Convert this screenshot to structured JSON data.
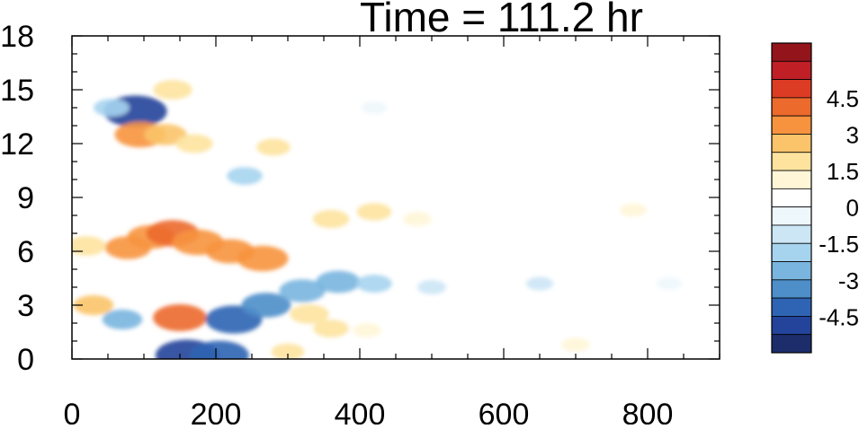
{
  "chart_data": {
    "type": "heatmap",
    "title": "Time = 111.2 hr",
    "xlabel": "",
    "ylabel": "",
    "xlim": [
      0,
      900
    ],
    "ylim": [
      0,
      18
    ],
    "x_ticks": [
      "0",
      "200",
      "400",
      "600",
      "800"
    ],
    "y_ticks": [
      "0",
      "3",
      "6",
      "9",
      "12",
      "15",
      "18"
    ],
    "colorbar": {
      "levels": [
        -5.25,
        -4.5,
        -3.75,
        -3,
        -2.25,
        -1.5,
        -0.75,
        0,
        0.75,
        1.5,
        2.25,
        3,
        3.75,
        4.5,
        5.25
      ],
      "tick_labels": [
        "4.5",
        "3",
        "1.5",
        "0",
        "-1.5",
        "-3",
        "-4.5"
      ],
      "tick_values": [
        4.5,
        3,
        1.5,
        0,
        -1.5,
        -3,
        -4.5
      ],
      "colors": [
        "#1d2d6b",
        "#23449a",
        "#2f64b4",
        "#4e8ec9",
        "#79b5df",
        "#a6d4ef",
        "#cce6f6",
        "#eef7fc",
        "#ffffff",
        "#fff6d8",
        "#fde39e",
        "#fbc46a",
        "#f7933f",
        "#ec6a2c",
        "#dd3c24",
        "#c01f26",
        "#93151b"
      ]
    },
    "features": [
      {
        "x": 70,
        "y": 2.2,
        "value": -2.3
      },
      {
        "x": 88,
        "y": 13.8,
        "value": -5.0
      },
      {
        "x": 95,
        "y": 12.5,
        "value": 3.6
      },
      {
        "x": 78,
        "y": 6.2,
        "value": 3.0
      },
      {
        "x": 110,
        "y": 6.8,
        "value": 3.2
      },
      {
        "x": 140,
        "y": 7.0,
        "value": 3.8
      },
      {
        "x": 175,
        "y": 6.5,
        "value": 3.6
      },
      {
        "x": 220,
        "y": 6.0,
        "value": 3.3
      },
      {
        "x": 265,
        "y": 5.6,
        "value": 3.6
      },
      {
        "x": 130,
        "y": 12.5,
        "value": 2.6
      },
      {
        "x": 170,
        "y": 12.0,
        "value": 2.0
      },
      {
        "x": 150,
        "y": 2.3,
        "value": 3.9
      },
      {
        "x": 160,
        "y": 0.2,
        "value": -5.2
      },
      {
        "x": 205,
        "y": 0.2,
        "value": -4.5
      },
      {
        "x": 225,
        "y": 2.2,
        "value": -4.2
      },
      {
        "x": 270,
        "y": 3.0,
        "value": -3.4
      },
      {
        "x": 320,
        "y": 3.8,
        "value": -3.0
      },
      {
        "x": 370,
        "y": 4.3,
        "value": -2.8
      },
      {
        "x": 420,
        "y": 4.2,
        "value": -1.8
      },
      {
        "x": 500,
        "y": 4.0,
        "value": -1.0
      },
      {
        "x": 650,
        "y": 4.2,
        "value": -0.8
      },
      {
        "x": 830,
        "y": 4.2,
        "value": -0.7
      },
      {
        "x": 360,
        "y": 7.8,
        "value": 1.9
      },
      {
        "x": 420,
        "y": 8.2,
        "value": 1.7
      },
      {
        "x": 480,
        "y": 7.8,
        "value": 1.0
      },
      {
        "x": 780,
        "y": 8.3,
        "value": 0.8
      },
      {
        "x": 330,
        "y": 2.5,
        "value": 2.2
      },
      {
        "x": 360,
        "y": 1.7,
        "value": 1.8
      },
      {
        "x": 410,
        "y": 1.6,
        "value": 1.0
      },
      {
        "x": 700,
        "y": 0.8,
        "value": 1.0
      },
      {
        "x": 30,
        "y": 3.0,
        "value": 2.3
      },
      {
        "x": 20,
        "y": 6.3,
        "value": 2.2
      },
      {
        "x": 55,
        "y": 14.0,
        "value": -1.8
      },
      {
        "x": 240,
        "y": 10.2,
        "value": -1.8
      },
      {
        "x": 280,
        "y": 11.8,
        "value": 1.6
      },
      {
        "x": 420,
        "y": 14.0,
        "value": -0.7
      },
      {
        "x": 140,
        "y": 15.0,
        "value": 2.2
      },
      {
        "x": 300,
        "y": 0.4,
        "value": 1.5
      }
    ]
  }
}
